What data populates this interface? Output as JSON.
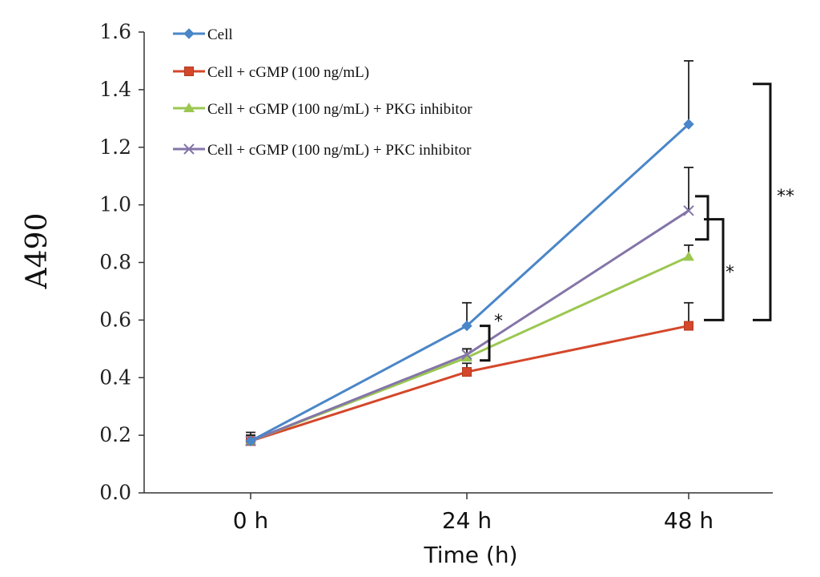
{
  "chart_data": {
    "type": "line",
    "xlabel": "Time (h)",
    "ylabel": "A490",
    "categories": [
      "0 h",
      "24 h",
      "48 h"
    ],
    "ylim": [
      0.0,
      1.6
    ],
    "yticks": [
      "0.0",
      "0.2",
      "0.4",
      "0.6",
      "0.8",
      "1.0",
      "1.2",
      "1.4",
      "1.6"
    ],
    "grid": false,
    "legend_position": "top-left",
    "series": [
      {
        "name": "Cell",
        "values": [
          0.18,
          0.58,
          1.28
        ],
        "errors": [
          0.03,
          0.08,
          0.22
        ],
        "color": "#4a86c8",
        "marker": "diamond"
      },
      {
        "name": "Cell + cGMP (100 ng/mL)",
        "values": [
          0.18,
          0.42,
          0.58
        ],
        "errors": [
          0.02,
          0.03,
          0.08
        ],
        "color": "#d4472a",
        "marker": "square"
      },
      {
        "name": "Cell + cGMP (100 ng/mL) + PKG inhibitor",
        "values": [
          0.18,
          0.47,
          0.82
        ],
        "errors": [
          0.02,
          0.03,
          0.04
        ],
        "color": "#9bc750",
        "marker": "triangle"
      },
      {
        "name": "Cell + cGMP (100 ng/mL) + PKC inhibitor",
        "values": [
          0.18,
          0.48,
          0.98
        ],
        "errors": [
          0.02,
          0.02,
          0.15
        ],
        "color": "#8475a8",
        "marker": "x"
      }
    ],
    "annotations": [
      {
        "label": "*",
        "x": "24 h",
        "from": 0.46,
        "to": 0.58
      },
      {
        "label": "*",
        "x": "48 h",
        "from": 0.88,
        "to": 1.03
      },
      {
        "label": "*",
        "x": "48 h",
        "from": 0.6,
        "to": 0.95
      },
      {
        "label": "**",
        "x": "48 h",
        "from": 0.6,
        "to": 1.42
      }
    ]
  }
}
